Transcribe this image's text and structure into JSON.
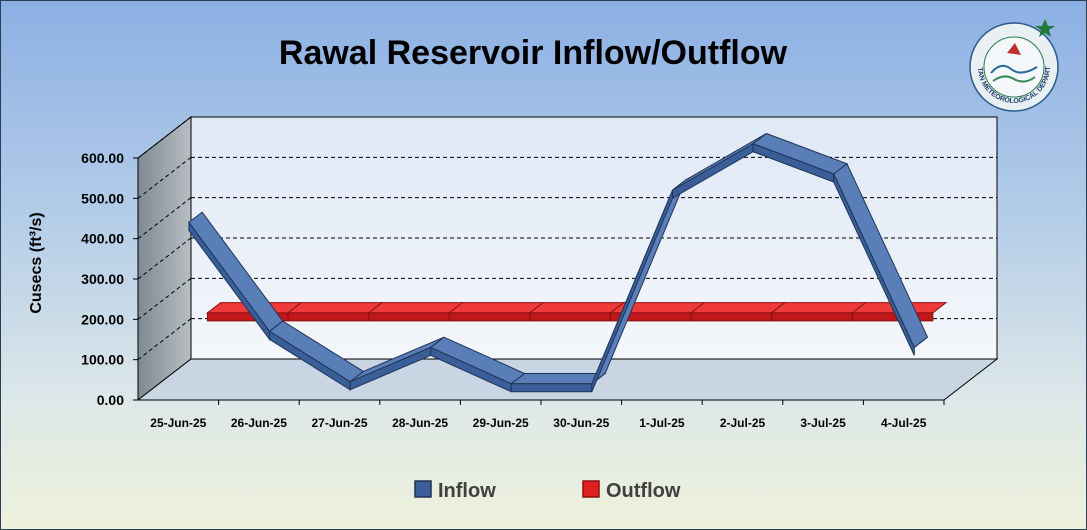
{
  "chart_data": {
    "type": "line",
    "title": "Rawal Reservoir Inflow/Outflow",
    "ylabel": "Cusecs (ft³/s)",
    "xlabel": "",
    "categories": [
      "25-Jun-25",
      "26-Jun-25",
      "27-Jun-25",
      "28-Jun-25",
      "29-Jun-25",
      "30-Jun-25",
      "1-Jul-25",
      "2-Jul-25",
      "3-Jul-25",
      "4-Jul-25"
    ],
    "ylim": [
      0,
      600
    ],
    "yticks": [
      "0.00",
      "100.00",
      "200.00",
      "300.00",
      "400.00",
      "500.00",
      "600.00"
    ],
    "grid": "horizontal dashed",
    "legend_position": "bottom",
    "series": [
      {
        "name": "Inflow",
        "color": "#3a5f98",
        "values": [
          420,
          150,
          25,
          110,
          20,
          20,
          500,
          615,
          540,
          110
        ]
      },
      {
        "name": "Outflow",
        "color": "#e02020",
        "values": [
          160,
          160,
          160,
          160,
          160,
          160,
          160,
          160,
          160,
          160
        ]
      }
    ]
  },
  "logo": {
    "name": "pakistan-meteorological-department-logo",
    "text": "PAKISTAN METEOROLOGICAL DEPARTMENT"
  }
}
